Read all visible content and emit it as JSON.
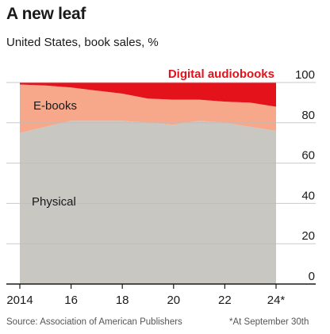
{
  "title": "A new leaf",
  "subtitle": "United States, book sales, %",
  "source": "Source: Association of American Publishers",
  "footnote": "*At September 30th",
  "colors": {
    "physical": "#c9c7c2",
    "ebooks": "#f7a88a",
    "audiobooks": "#e3121b",
    "audiobooks_label": "#e3121b",
    "grid": "#bdbdbd",
    "axis": "#1a1a1a"
  },
  "chart_data": {
    "type": "area",
    "stacked": true,
    "x": [
      2014,
      2015,
      2016,
      2017,
      2018,
      2019,
      2020,
      2021,
      2022,
      2023,
      2024
    ],
    "xticks": [
      2014,
      2016,
      2018,
      2020,
      2022,
      2024
    ],
    "xtick_labels": [
      "2014",
      "16",
      "18",
      "20",
      "22",
      "24*"
    ],
    "ylim": [
      0,
      100
    ],
    "yticks": [
      0,
      20,
      40,
      60,
      80,
      100
    ],
    "ytick_labels": [
      "0",
      "20",
      "40",
      "60",
      "80",
      "100"
    ],
    "y_axis_side": "right",
    "grid": true,
    "series": [
      {
        "name": "Physical",
        "color_key": "physical",
        "values": [
          75,
          78,
          81,
          81,
          81,
          80,
          79,
          81,
          80,
          78,
          76
        ]
      },
      {
        "name": "E-books",
        "color_key": "ebooks",
        "values": [
          24,
          20.5,
          16.5,
          15,
          13.5,
          12,
          12.5,
          10.5,
          10.5,
          12,
          12
        ]
      },
      {
        "name": "Digital audiobooks",
        "color_key": "audiobooks",
        "values": [
          1,
          1.5,
          2.5,
          4,
          5.5,
          8,
          8.5,
          8.5,
          9.5,
          10,
          12
        ]
      }
    ]
  }
}
